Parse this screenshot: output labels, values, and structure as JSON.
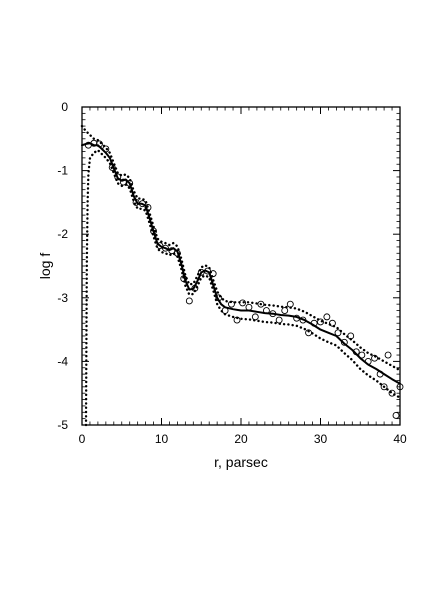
{
  "chart_data": {
    "type": "line",
    "title": "",
    "xlabel": "r, parsec",
    "ylabel": "log f",
    "xlim": [
      0,
      40
    ],
    "ylim": [
      -5,
      0
    ],
    "x_ticks": [
      0,
      10,
      20,
      30,
      40
    ],
    "y_ticks": [
      0,
      -1,
      -2,
      -3,
      -4,
      -5
    ],
    "grid": false,
    "legend": "none",
    "series": [
      {
        "style": "solid",
        "x": [
          0,
          0.5,
          1,
          1.5,
          2,
          2.5,
          3,
          3.5,
          4,
          4.5,
          5,
          5.5,
          6,
          6.5,
          7,
          7.5,
          8,
          8.5,
          9,
          9.5,
          10,
          10.5,
          11,
          11.5,
          12,
          12.5,
          13,
          13.5,
          14,
          14.5,
          15,
          15.5,
          16,
          16.5,
          17,
          17.5,
          18,
          19,
          20,
          21,
          22,
          23,
          24,
          25,
          26,
          27,
          28,
          29,
          30,
          31,
          32,
          33,
          34,
          35,
          36,
          37,
          38,
          39,
          40
        ],
        "values": [
          -0.6,
          -0.58,
          -0.57,
          -0.6,
          -0.6,
          -0.66,
          -0.72,
          -0.8,
          -0.96,
          -1.12,
          -1.16,
          -1.14,
          -1.2,
          -1.4,
          -1.52,
          -1.52,
          -1.55,
          -1.75,
          -1.96,
          -2.15,
          -2.2,
          -2.22,
          -2.25,
          -2.22,
          -2.27,
          -2.47,
          -2.73,
          -2.87,
          -2.86,
          -2.74,
          -2.6,
          -2.57,
          -2.6,
          -2.8,
          -3.0,
          -3.1,
          -3.15,
          -3.18,
          -3.2,
          -3.2,
          -3.22,
          -3.24,
          -3.25,
          -3.27,
          -3.28,
          -3.3,
          -3.35,
          -3.42,
          -3.5,
          -3.55,
          -3.6,
          -3.72,
          -3.82,
          -3.95,
          -4.05,
          -4.12,
          -4.2,
          -4.28,
          -4.35
        ]
      },
      {
        "style": "dotted",
        "x": [
          0,
          0.5,
          1,
          1.5,
          2,
          2.5,
          3,
          3.5,
          4,
          4.5,
          5,
          5.5,
          6,
          6.5,
          7,
          7.5,
          8,
          8.5,
          9,
          9.5,
          10,
          10.5,
          11,
          11.5,
          12,
          12.5,
          13,
          13.5,
          14,
          14.5,
          15,
          15.5,
          16,
          16.5,
          17,
          17.5,
          18,
          19,
          20,
          21,
          22,
          23,
          24,
          25,
          26,
          27,
          28,
          29,
          30,
          31,
          32,
          33,
          34,
          35,
          36,
          37,
          38,
          39,
          40
        ],
        "values": [
          -0.3,
          -0.38,
          -0.44,
          -0.5,
          -0.52,
          -0.58,
          -0.64,
          -0.72,
          -0.88,
          -1.04,
          -1.08,
          -1.06,
          -1.12,
          -1.32,
          -1.44,
          -1.44,
          -1.47,
          -1.67,
          -1.88,
          -2.07,
          -2.12,
          -2.14,
          -2.17,
          -2.14,
          -2.19,
          -2.39,
          -2.65,
          -2.79,
          -2.78,
          -2.66,
          -2.52,
          -2.49,
          -2.52,
          -2.72,
          -2.9,
          -3.0,
          -3.05,
          -3.07,
          -3.07,
          -3.07,
          -3.09,
          -3.11,
          -3.12,
          -3.14,
          -3.15,
          -3.17,
          -3.22,
          -3.29,
          -3.36,
          -3.41,
          -3.46,
          -3.57,
          -3.67,
          -3.78,
          -3.87,
          -3.93,
          -4.0,
          -4.07,
          -4.14
        ]
      },
      {
        "style": "dotted",
        "x": [
          0.5,
          0.6,
          0.7,
          0.8,
          1,
          1.5,
          2,
          2.5,
          3,
          3.5,
          4,
          4.5,
          5,
          5.5,
          6,
          6.5,
          7,
          7.5,
          8,
          8.5,
          9,
          9.5,
          10,
          10.5,
          11,
          11.5,
          12,
          12.5,
          13,
          13.5,
          14,
          14.5,
          15,
          15.5,
          16,
          16.5,
          17,
          17.5,
          18,
          19,
          20,
          21,
          22,
          23,
          24,
          25,
          26,
          27,
          28,
          29,
          30,
          31,
          32,
          33,
          34,
          35,
          36,
          37,
          38,
          39,
          40
        ],
        "values": [
          -5.0,
          -2.5,
          -1.5,
          -1.05,
          -0.8,
          -0.72,
          -0.68,
          -0.74,
          -0.8,
          -0.88,
          -1.04,
          -1.2,
          -1.24,
          -1.22,
          -1.28,
          -1.48,
          -1.6,
          -1.6,
          -1.63,
          -1.83,
          -2.04,
          -2.23,
          -2.28,
          -2.3,
          -2.33,
          -2.3,
          -2.35,
          -2.55,
          -2.81,
          -2.95,
          -2.94,
          -2.82,
          -2.68,
          -2.65,
          -2.68,
          -2.88,
          -3.1,
          -3.2,
          -3.26,
          -3.3,
          -3.33,
          -3.34,
          -3.36,
          -3.38,
          -3.39,
          -3.41,
          -3.42,
          -3.44,
          -3.49,
          -3.56,
          -3.64,
          -3.7,
          -3.75,
          -3.87,
          -3.98,
          -4.12,
          -4.22,
          -4.3,
          -4.4,
          -4.5,
          -4.57
        ]
      },
      {
        "style": "markers",
        "marker": "open-circle",
        "x": [
          0.8,
          1.5,
          2.2,
          3.0,
          3.8,
          4.5,
          5.2,
          6.0,
          6.8,
          7.6,
          8.3,
          9.0,
          9.8,
          10.5,
          11.3,
          12.0,
          12.8,
          13.5,
          14.2,
          15.0,
          15.8,
          16.5,
          17.2,
          18.0,
          18.8,
          19.5,
          20.2,
          21.0,
          21.8,
          22.5,
          23.2,
          24.0,
          24.8,
          25.5,
          26.2,
          27.0,
          27.8,
          28.5,
          29.2,
          30.0,
          30.8,
          31.5,
          32.2,
          33.0,
          33.8,
          34.5,
          35.2,
          36.0,
          36.8,
          37.5,
          38.0,
          38.5,
          39.0,
          39.5,
          40.0
        ],
        "values": [
          -0.6,
          -0.57,
          -0.58,
          -0.66,
          -0.95,
          -1.1,
          -1.18,
          -1.2,
          -1.5,
          -1.52,
          -1.58,
          -1.95,
          -2.18,
          -2.22,
          -2.26,
          -2.3,
          -2.7,
          -3.05,
          -2.85,
          -2.6,
          -2.58,
          -2.62,
          -3.0,
          -3.2,
          -3.1,
          -3.35,
          -3.08,
          -3.15,
          -3.3,
          -3.1,
          -3.2,
          -3.25,
          -3.35,
          -3.2,
          -3.1,
          -3.32,
          -3.35,
          -3.55,
          -3.4,
          -3.38,
          -3.3,
          -3.4,
          -3.55,
          -3.7,
          -3.6,
          -3.85,
          -3.9,
          -4.0,
          -3.95,
          -4.2,
          -4.4,
          -3.9,
          -4.5,
          -4.85,
          -4.4
        ]
      }
    ]
  }
}
